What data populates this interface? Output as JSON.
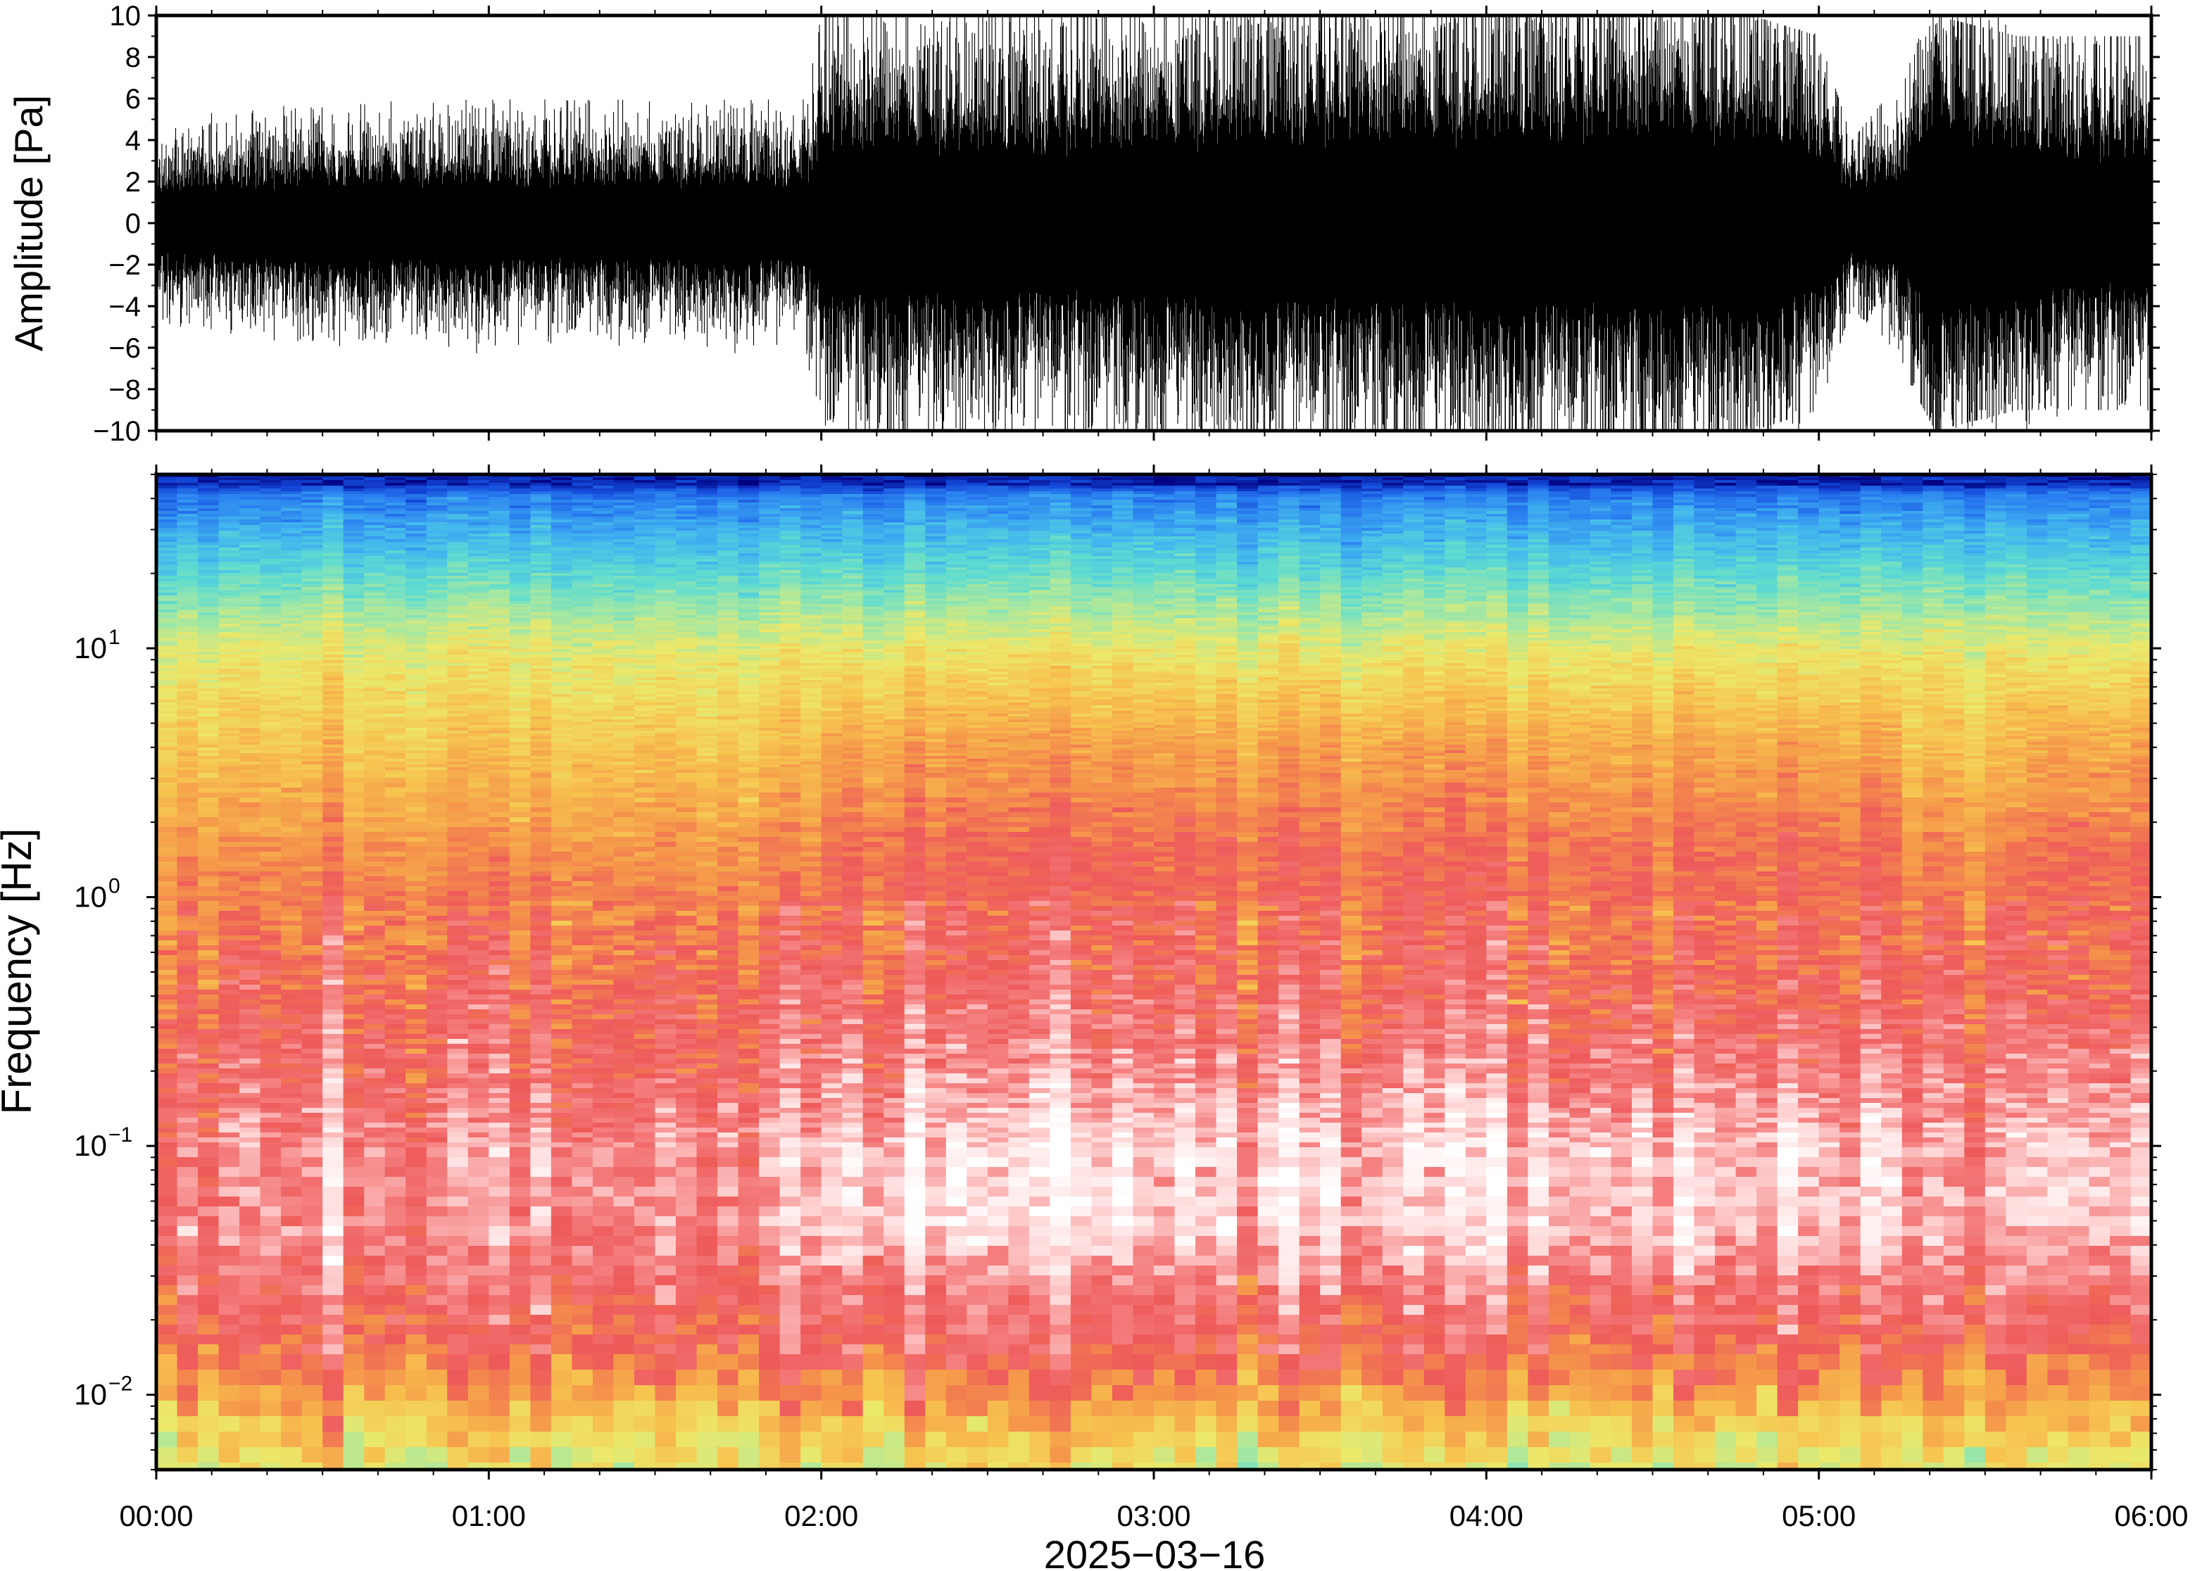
{
  "chart_data": [
    {
      "type": "line",
      "title": "",
      "ylabel": "Amplitude [Pa]",
      "ylim": [
        -10,
        10
      ],
      "yticks": [
        "10",
        "8",
        "6",
        "4",
        "2",
        "0",
        "−2",
        "−4",
        "−6",
        "−8",
        "−10"
      ],
      "ytick_values": [
        10,
        8,
        6,
        4,
        2,
        0,
        -2,
        -4,
        -6,
        -8,
        -10
      ],
      "xlim_hours": [
        0,
        6
      ],
      "series": [
        {
          "color": "#000000",
          "envelope_x_hours": [
            0.0,
            0.5,
            1.0,
            1.5,
            1.95,
            2.0,
            2.2,
            2.5,
            3.0,
            3.5,
            4.0,
            4.5,
            4.8,
            5.0,
            5.1,
            5.25,
            5.35,
            5.6,
            6.0
          ],
          "envelope_amplitude_pa": [
            2.5,
            3.0,
            3.0,
            3.0,
            3.0,
            5.5,
            6.0,
            5.5,
            6.0,
            6.5,
            6.5,
            7.0,
            6.5,
            5.5,
            2.5,
            3.5,
            7.5,
            5.5,
            5.0
          ],
          "peak_amplitude_pa": [
            5,
            6,
            6,
            6,
            6,
            10,
            10,
            10,
            10,
            10,
            10,
            10,
            10,
            9,
            4,
            7,
            10,
            9,
            9
          ]
        }
      ]
    },
    {
      "type": "heatmap",
      "title": "",
      "ylabel": "Frequency [Hz]",
      "yscale": "log",
      "ylim_hz": [
        0.005,
        50
      ],
      "yticks": [
        {
          "base": "10",
          "exp": "1",
          "value": 10
        },
        {
          "base": "10",
          "exp": "0",
          "value": 1
        },
        {
          "base": "10",
          "exp": "−1",
          "value": 0.1
        },
        {
          "base": "10",
          "exp": "−2",
          "value": 0.01
        }
      ],
      "xlabel": "2025−03−16",
      "xticks": [
        "00:00",
        "01:00",
        "02:00",
        "03:00",
        "04:00",
        "05:00",
        "06:00"
      ],
      "xlim_hours": [
        0,
        6
      ],
      "colormap": [
        "#ffffff",
        "#ffd6d6",
        "#f57f7f",
        "#ee5a5a",
        "#f5964a",
        "#f7c34f",
        "#ece86a",
        "#a8e8a0",
        "#5fdcd0",
        "#43b7ee",
        "#2a7ff0",
        "#1448d8",
        "#000080"
      ],
      "description_bands": "blue above ~20 Hz, cyan/green ~10 Hz, yellow/orange ~2-5 Hz, red 0.2-2 Hz, pink/white 0.05-0.2 Hz (brighter after 02:00), red ~0.02 Hz, orange/yellow/green below 0.01 Hz"
    }
  ]
}
